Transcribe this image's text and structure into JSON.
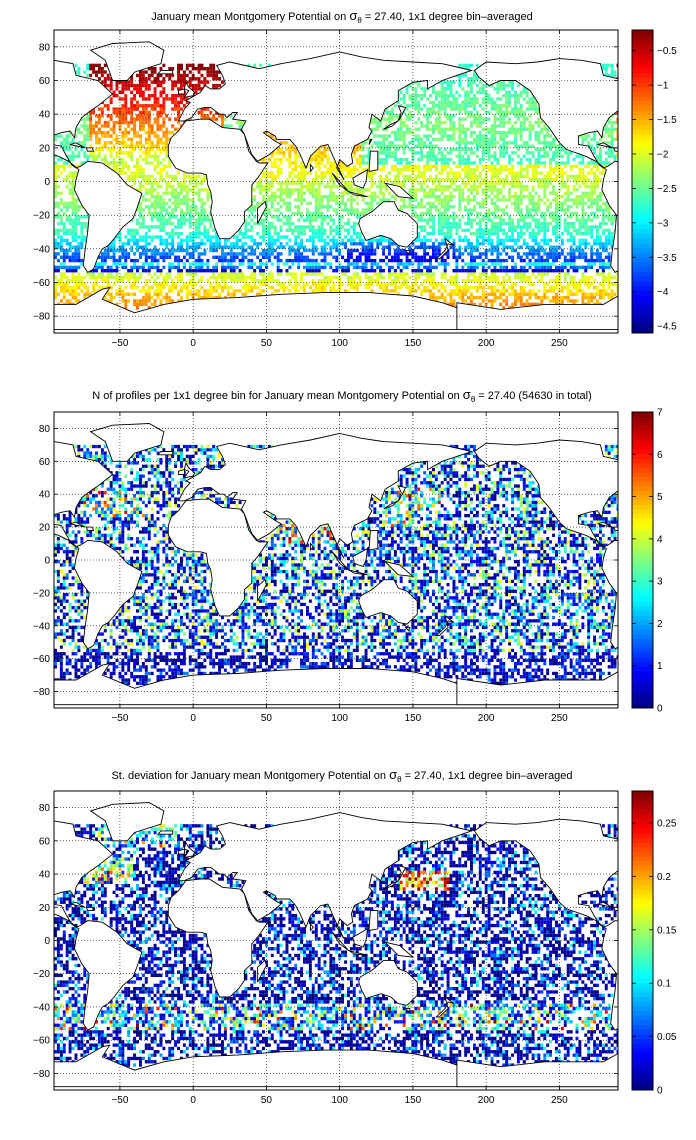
{
  "colors": {
    "land": "#ffffff",
    "ocean_nodata": "#ffffff",
    "frame": "#000000",
    "grid": "#000000"
  },
  "chart_data": [
    {
      "type": "heatmap",
      "title": "January mean Montgomery Potential on σθ = 27.40, 1x1 degree bin–averaged",
      "colormap": "jet",
      "xlim": [
        -95,
        290
      ],
      "ylim": [
        -90,
        90
      ],
      "xticks": [
        -50,
        0,
        50,
        100,
        150,
        200,
        250
      ],
      "yticks": [
        80,
        60,
        40,
        20,
        0,
        -20,
        -40,
        -60,
        -80
      ],
      "grid": true,
      "clim": [
        -4.6,
        -0.2
      ],
      "colorbar_ticks": [
        -0.5,
        -1,
        -1.5,
        -2,
        -2.5,
        -3,
        -3.5,
        -4,
        -4.5
      ],
      "field_description": "high (-0.5 to -1) in North Atlantic; about -1.5 at 60S; about -4 south of Australia and along 40-45S",
      "field_key": "potential"
    },
    {
      "type": "heatmap",
      "title": "N of profiles per 1x1 degree bin for January mean Montgomery Potential on σθ = 27.40 (54630 in total)",
      "total_profiles": 54630,
      "colormap": "jet",
      "xlim": [
        -95,
        290
      ],
      "ylim": [
        -90,
        90
      ],
      "xticks": [
        -50,
        0,
        50,
        100,
        150,
        200,
        250
      ],
      "yticks": [
        80,
        60,
        40,
        20,
        0,
        -20,
        -40,
        -60,
        -80
      ],
      "grid": true,
      "clim": [
        0,
        7
      ],
      "colorbar_ticks": [
        7,
        6,
        5,
        4,
        3,
        2,
        1,
        0
      ],
      "field_description": "mostly 1-2 profiles per bin; peaks (6-7) in NW Pacific, Arabian Sea, Bay of Bengal",
      "field_key": "count"
    },
    {
      "type": "heatmap",
      "title": "St. deviation for January mean Montgomery Potential on σθ = 27.40, 1x1 degree bin–averaged",
      "colormap": "jet",
      "xlim": [
        -95,
        290
      ],
      "ylim": [
        -90,
        90
      ],
      "xticks": [
        -50,
        0,
        50,
        100,
        150,
        200,
        250
      ],
      "yticks": [
        80,
        60,
        40,
        20,
        0,
        -20,
        -40,
        -60,
        -80
      ],
      "grid": true,
      "clim": [
        0,
        0.28
      ],
      "colorbar_ticks": [
        0.25,
        0.2,
        0.15,
        0.1,
        0.05,
        0
      ],
      "field_description": "mostly below 0.05; high (0.2-0.28) in Kuroshio extension, Gulf Stream and Antarctic Circumpolar Current near 40-50S",
      "field_key": "std"
    }
  ]
}
